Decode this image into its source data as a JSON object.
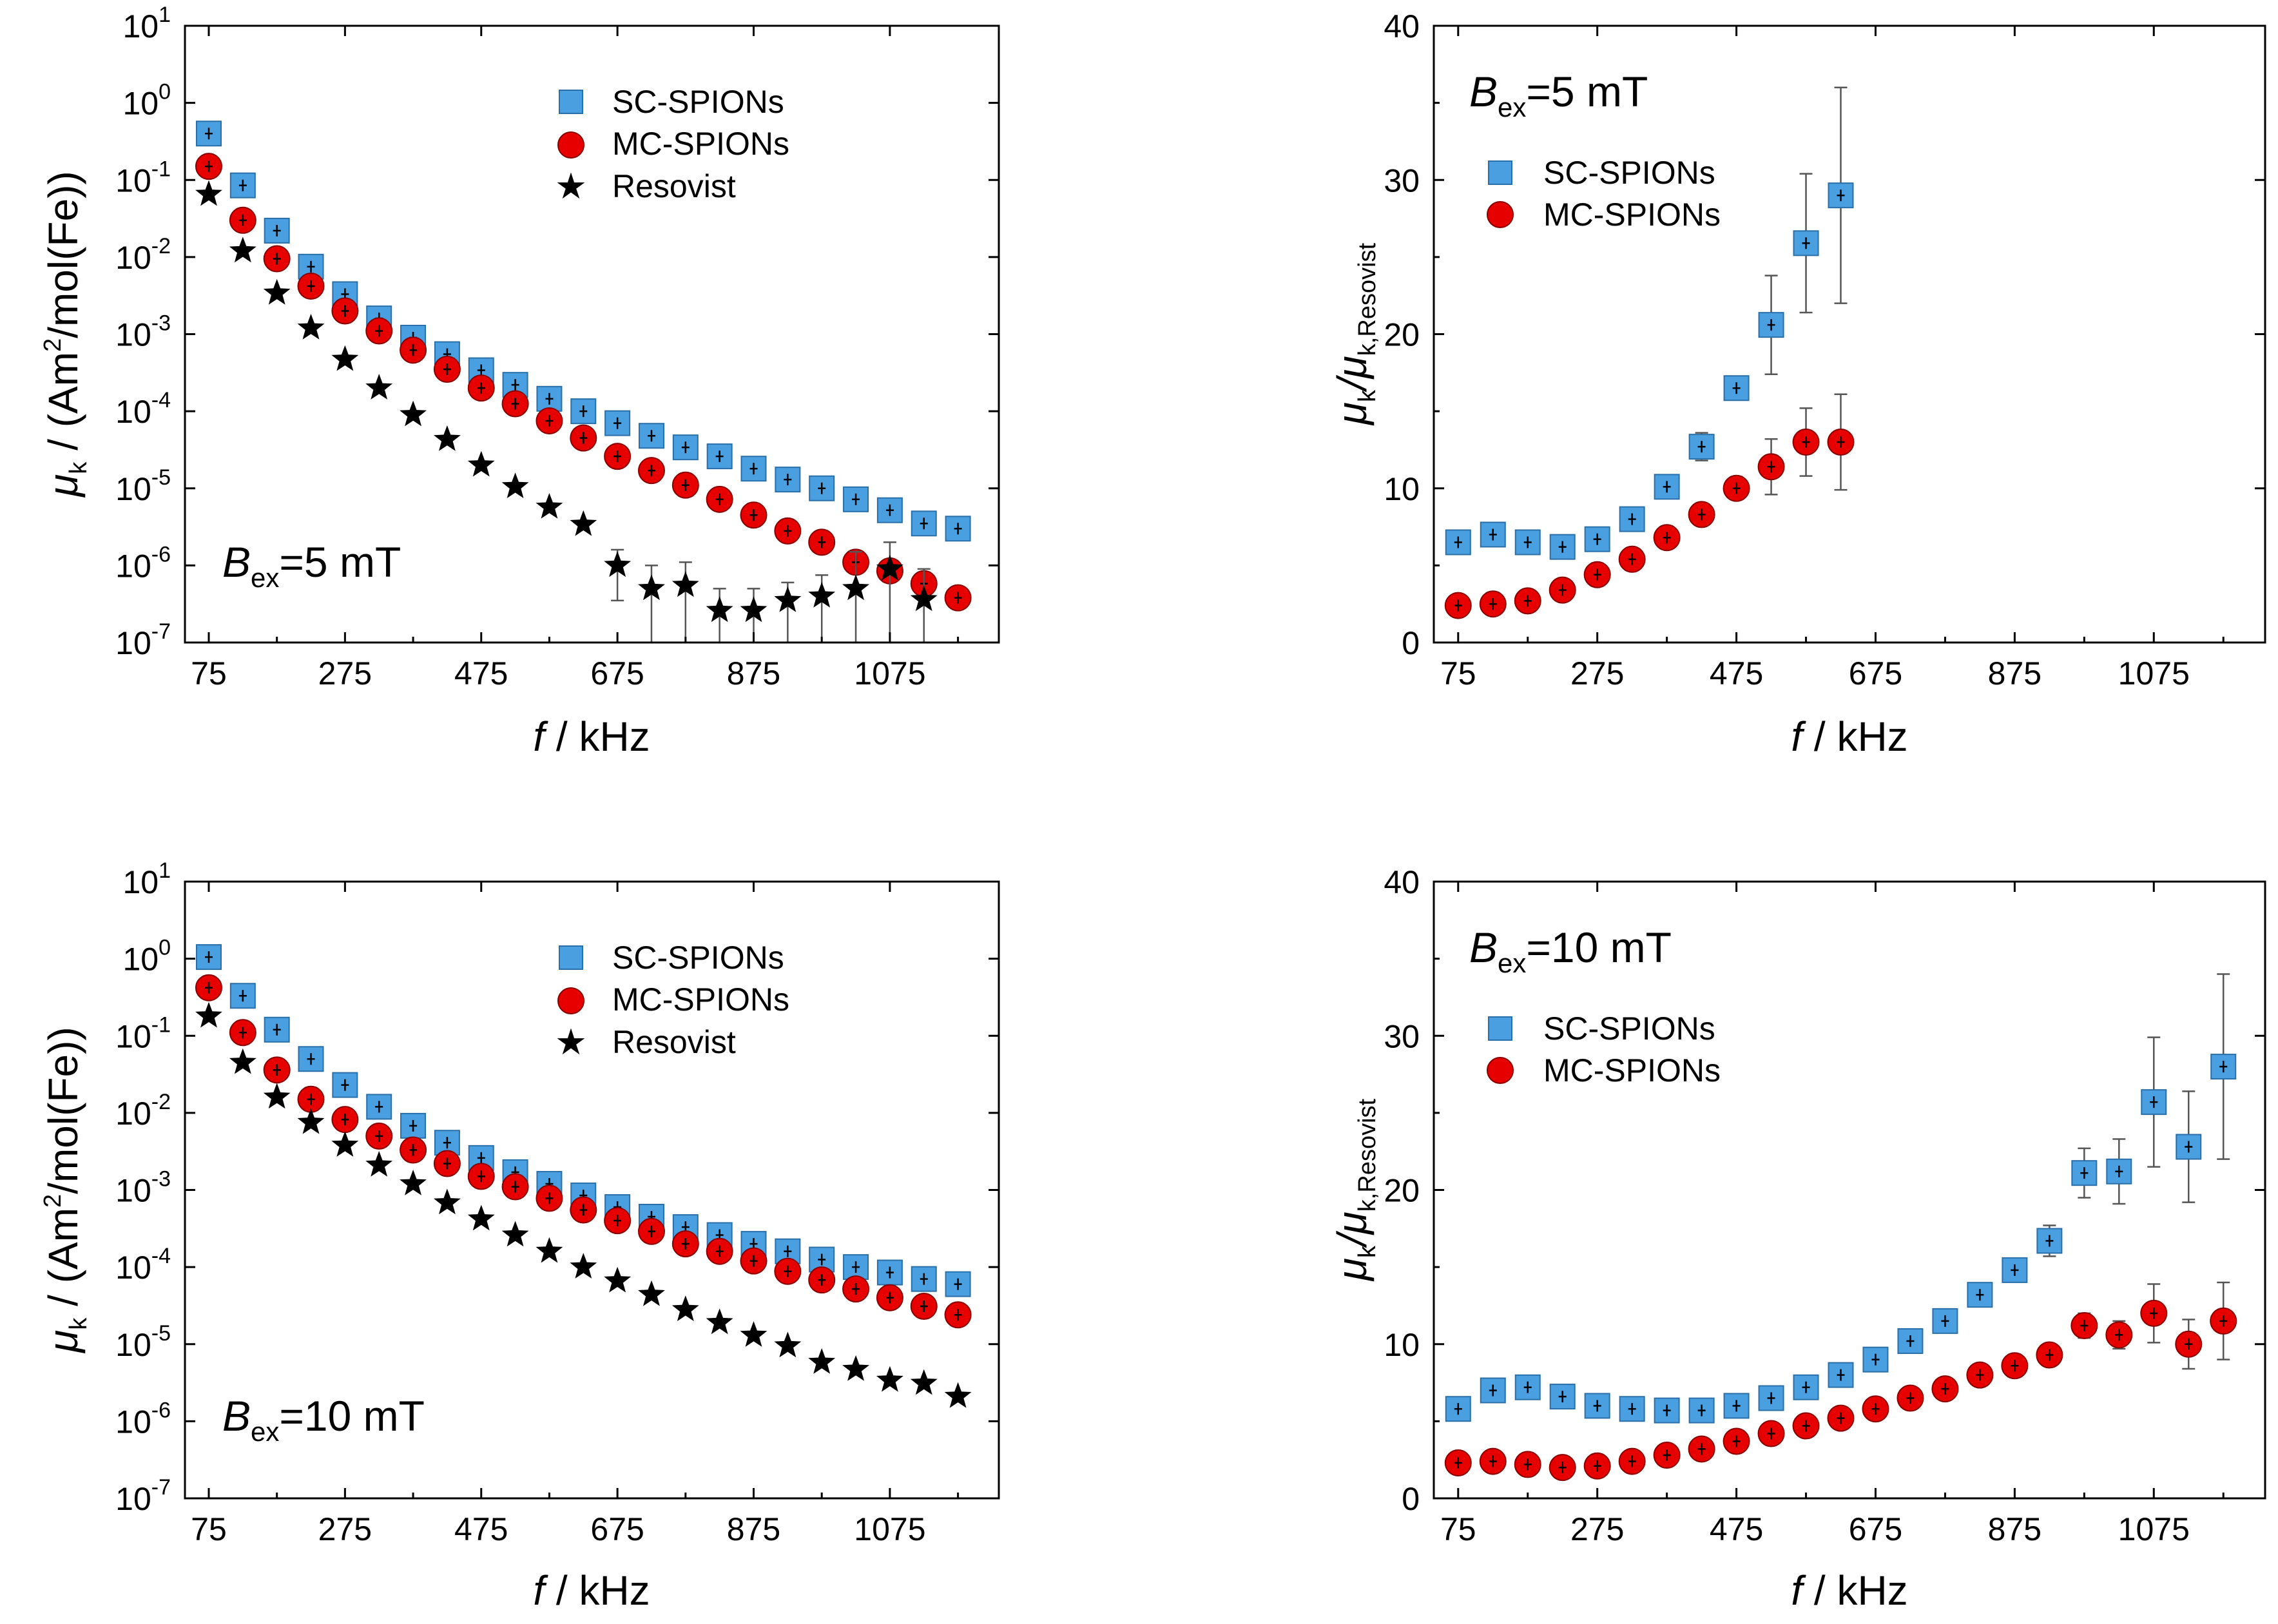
{
  "chart_data": [
    {
      "id": "p1",
      "type": "scatter",
      "yscale": "log",
      "xlim": [
        40,
        1235
      ],
      "ylim": [
        1e-07,
        10
      ],
      "xticks": [
        75,
        275,
        475,
        675,
        875,
        1075
      ],
      "xtick_labels": [
        "75",
        "275",
        "475",
        "675",
        "875",
        "1075"
      ],
      "yticks": [
        1e-07,
        1e-06,
        1e-05,
        0.0001,
        0.001,
        0.01,
        0.1,
        1,
        10
      ],
      "ytick_base": [
        "10",
        "10",
        "10",
        "10",
        "10",
        "10",
        "10",
        "10",
        "10"
      ],
      "ytick_exp": [
        "-7",
        "-6",
        "-5",
        "-4",
        "-3",
        "-2",
        "-1",
        "0",
        "1"
      ],
      "xlabel_italic": "f",
      "xlabel_rest": " / kHz",
      "ylabel_mu": "μ",
      "ylabel_sub": "k",
      "ylabel_rest": " / (Am",
      "ylabel_sup": "2",
      "ylabel_end": "/mol(Fe))",
      "annotation": {
        "B": "B",
        "sub": "ex",
        "text": "=5 mT"
      },
      "legend": [
        {
          "label": "SC-SPIONs",
          "marker": "square",
          "color": "#4a9fe0"
        },
        {
          "label": "MC-SPIONs",
          "marker": "circle",
          "color": "#e60000"
        },
        {
          "label": "Resovist",
          "marker": "star",
          "color": "#000000"
        }
      ],
      "series": [
        {
          "name": "SC-SPIONs",
          "marker": "square",
          "color": "#4a9fe0",
          "x": [
            75,
            125,
            175,
            225,
            275,
            325,
            375,
            425,
            475,
            525,
            575,
            625,
            675,
            725,
            775,
            825,
            875,
            925,
            975,
            1025,
            1075,
            1125,
            1175
          ],
          "y": [
            0.4,
            0.085,
            0.022,
            0.0075,
            0.0033,
            0.0016,
            0.0009,
            0.00055,
            0.00034,
            0.00022,
            0.000145,
            0.0001,
            7e-05,
            4.8e-05,
            3.4e-05,
            2.6e-05,
            1.8e-05,
            1.3e-05,
            1e-05,
            7.2e-06,
            5.2e-06,
            3.5e-06,
            3e-06
          ]
        },
        {
          "name": "MC-SPIONs",
          "marker": "circle",
          "color": "#e60000",
          "x": [
            75,
            125,
            175,
            225,
            275,
            325,
            375,
            425,
            475,
            525,
            575,
            625,
            675,
            725,
            775,
            825,
            875,
            925,
            975,
            1025,
            1075,
            1125,
            1175
          ],
          "y": [
            0.15,
            0.03,
            0.0095,
            0.0042,
            0.002,
            0.0011,
            0.00062,
            0.00035,
            0.0002,
            0.000125,
            7.5e-05,
            4.5e-05,
            2.6e-05,
            1.7e-05,
            1.1e-05,
            7.2e-06,
            4.5e-06,
            2.8e-06,
            2e-06,
            1.1e-06,
            8.5e-07,
            5.8e-07,
            3.8e-07
          ]
        },
        {
          "name": "Resovist",
          "marker": "star",
          "color": "#000000",
          "x": [
            75,
            125,
            175,
            225,
            275,
            325,
            375,
            425,
            475,
            525,
            575,
            625,
            675,
            725,
            775,
            825,
            875,
            925,
            975,
            1025,
            1075,
            1125
          ],
          "y": [
            0.065,
            0.012,
            0.0034,
            0.0012,
            0.00047,
            0.0002,
            9e-05,
            4.3e-05,
            2e-05,
            1.05e-05,
            5.7e-06,
            3.4e-06,
            1e-06,
            5e-07,
            5.5e-07,
            2.6e-07,
            2.6e-07,
            3.5e-07,
            4e-07,
            5e-07,
            9e-07,
            3.6e-07
          ],
          "err_lo": [
            null,
            null,
            null,
            null,
            null,
            null,
            null,
            null,
            null,
            null,
            null,
            null,
            3.5e-07,
            1e-07,
            1e-07,
            1e-07,
            1e-07,
            1e-07,
            1e-07,
            1e-07,
            1e-07,
            1e-07
          ],
          "err_hi": [
            null,
            null,
            null,
            null,
            null,
            null,
            null,
            null,
            null,
            null,
            null,
            null,
            1.6e-06,
            1e-06,
            1.1e-06,
            5e-07,
            5e-07,
            6e-07,
            7.5e-07,
            1.5e-06,
            2e-06,
            9e-07
          ]
        }
      ]
    },
    {
      "id": "p2",
      "type": "scatter",
      "yscale": "linear",
      "xlim": [
        40,
        1235
      ],
      "ylim": [
        0,
        40
      ],
      "xticks": [
        75,
        275,
        475,
        675,
        875,
        1075
      ],
      "xtick_labels": [
        "75",
        "275",
        "475",
        "675",
        "875",
        "1075"
      ],
      "yticks": [
        0,
        10,
        20,
        30,
        40
      ],
      "ytick_labels": [
        "0",
        "10",
        "20",
        "30",
        "40"
      ],
      "xlabel_italic": "f",
      "xlabel_rest": " / kHz",
      "ylabel_mu": "μ",
      "ylabel_sub": "k",
      "ylabel_mid": "/μ",
      "ylabel_sub2": "k,Resovist",
      "annotation": {
        "B": "B",
        "sub": "ex",
        "text": "=5 mT"
      },
      "legend": [
        {
          "label": "SC-SPIONs",
          "marker": "square",
          "color": "#4a9fe0"
        },
        {
          "label": "MC-SPIONs",
          "marker": "circle",
          "color": "#e60000"
        }
      ],
      "series": [
        {
          "name": "SC-SPIONs",
          "marker": "square",
          "color": "#4a9fe0",
          "x": [
            75,
            125,
            175,
            225,
            275,
            325,
            375,
            425,
            475,
            525,
            575,
            625
          ],
          "y": [
            6.5,
            7.0,
            6.5,
            6.2,
            6.7,
            8.0,
            10.1,
            12.7,
            16.5,
            20.6,
            25.9,
            29.0
          ],
          "err": [
            0.5,
            0.5,
            0.5,
            0.5,
            0.6,
            0.6,
            0.6,
            0.9,
            0.6,
            3.2,
            4.5,
            7.0
          ]
        },
        {
          "name": "MC-SPIONs",
          "marker": "circle",
          "color": "#e60000",
          "x": [
            75,
            125,
            175,
            225,
            275,
            325,
            375,
            425,
            475,
            525,
            575,
            625
          ],
          "y": [
            2.4,
            2.5,
            2.7,
            3.4,
            4.4,
            5.4,
            6.8,
            8.3,
            10.0,
            11.4,
            13.0,
            13.0
          ],
          "err": [
            0.3,
            0.3,
            0.3,
            0.4,
            0.4,
            0.4,
            0.5,
            0.5,
            0.7,
            1.8,
            2.2,
            3.1
          ]
        }
      ]
    },
    {
      "id": "p3",
      "type": "scatter",
      "yscale": "log",
      "xlim": [
        40,
        1235
      ],
      "ylim": [
        1e-07,
        10
      ],
      "xticks": [
        75,
        275,
        475,
        675,
        875,
        1075
      ],
      "xtick_labels": [
        "75",
        "275",
        "475",
        "675",
        "875",
        "1075"
      ],
      "yticks": [
        1e-07,
        1e-06,
        1e-05,
        0.0001,
        0.001,
        0.01,
        0.1,
        1,
        10
      ],
      "ytick_base": [
        "10",
        "10",
        "10",
        "10",
        "10",
        "10",
        "10",
        "10",
        "10"
      ],
      "ytick_exp": [
        "-7",
        "-6",
        "-5",
        "-4",
        "-3",
        "-2",
        "-1",
        "0",
        "1"
      ],
      "xlabel_italic": "f",
      "xlabel_rest": " / kHz",
      "ylabel_mu": "μ",
      "ylabel_sub": "k",
      "ylabel_rest": " / (Am",
      "ylabel_sup": "2",
      "ylabel_end": "/mol(Fe))",
      "annotation": {
        "B": "B",
        "sub": "ex",
        "text": "=10 mT"
      },
      "legend": [
        {
          "label": "SC-SPIONs",
          "marker": "square",
          "color": "#4a9fe0"
        },
        {
          "label": "MC-SPIONs",
          "marker": "circle",
          "color": "#e60000"
        },
        {
          "label": "Resovist",
          "marker": "star",
          "color": "#000000"
        }
      ],
      "series": [
        {
          "name": "SC-SPIONs",
          "marker": "square",
          "color": "#4a9fe0",
          "x": [
            75,
            125,
            175,
            225,
            275,
            325,
            375,
            425,
            475,
            525,
            575,
            625,
            675,
            725,
            775,
            825,
            875,
            925,
            975,
            1025,
            1075,
            1125,
            1175
          ],
          "y": [
            1.05,
            0.33,
            0.12,
            0.05,
            0.023,
            0.012,
            0.0068,
            0.0041,
            0.0026,
            0.0017,
            0.0012,
            0.00085,
            0.0006,
            0.00045,
            0.00033,
            0.00026,
            0.0002,
            0.00016,
            0.000125,
            0.0001,
            8.5e-05,
            7e-05,
            6e-05
          ]
        },
        {
          "name": "MC-SPIONs",
          "marker": "circle",
          "color": "#e60000",
          "x": [
            75,
            125,
            175,
            225,
            275,
            325,
            375,
            425,
            475,
            525,
            575,
            625,
            675,
            725,
            775,
            825,
            875,
            925,
            975,
            1025,
            1075,
            1125,
            1175
          ],
          "y": [
            0.42,
            0.11,
            0.036,
            0.015,
            0.0082,
            0.005,
            0.0033,
            0.0022,
            0.0015,
            0.0011,
            0.00078,
            0.00055,
            0.0004,
            0.00029,
            0.0002,
            0.00016,
            0.00012,
            8.8e-05,
            6.8e-05,
            5.2e-05,
            4e-05,
            3.1e-05,
            2.4e-05
          ]
        },
        {
          "name": "Resovist",
          "marker": "star",
          "color": "#000000",
          "x": [
            75,
            125,
            175,
            225,
            275,
            325,
            375,
            425,
            475,
            525,
            575,
            625,
            675,
            725,
            775,
            825,
            875,
            925,
            975,
            1025,
            1075,
            1125,
            1175
          ],
          "y": [
            0.18,
            0.045,
            0.016,
            0.0075,
            0.0038,
            0.0021,
            0.0012,
            0.00068,
            0.00042,
            0.00026,
            0.00016,
            0.0001,
            6.6e-05,
            4.4e-05,
            2.8e-05,
            1.9e-05,
            1.3e-05,
            9.5e-06,
            5.8e-06,
            4.7e-06,
            3.4e-06,
            3.1e-06,
            2.1e-06
          ]
        }
      ]
    },
    {
      "id": "p4",
      "type": "scatter",
      "yscale": "linear",
      "xlim": [
        40,
        1235
      ],
      "ylim": [
        0,
        40
      ],
      "xticks": [
        75,
        275,
        475,
        675,
        875,
        1075
      ],
      "xtick_labels": [
        "75",
        "275",
        "475",
        "675",
        "875",
        "1075"
      ],
      "yticks": [
        0,
        10,
        20,
        30,
        40
      ],
      "ytick_labels": [
        "0",
        "10",
        "20",
        "30",
        "40"
      ],
      "xlabel_italic": "f",
      "xlabel_rest": " / kHz",
      "ylabel_mu": "μ",
      "ylabel_sub": "k",
      "ylabel_mid": "/μ",
      "ylabel_sub2": "k,Resovist",
      "annotation": {
        "B": "B",
        "sub": "ex",
        "text": "=10 mT"
      },
      "legend": [
        {
          "label": "SC-SPIONs",
          "marker": "square",
          "color": "#4a9fe0"
        },
        {
          "label": "MC-SPIONs",
          "marker": "circle",
          "color": "#e60000"
        }
      ],
      "series": [
        {
          "name": "SC-SPIONs",
          "marker": "square",
          "color": "#4a9fe0",
          "x": [
            75,
            125,
            175,
            225,
            275,
            325,
            375,
            425,
            475,
            525,
            575,
            625,
            675,
            725,
            775,
            825,
            875,
            925,
            975,
            1025,
            1075,
            1125,
            1175
          ],
          "y": [
            5.8,
            7.0,
            7.2,
            6.6,
            6.0,
            5.8,
            5.7,
            5.7,
            6.0,
            6.5,
            7.2,
            8.0,
            9.0,
            10.2,
            11.5,
            13.2,
            14.8,
            16.7,
            21.1,
            21.2,
            25.7,
            22.8,
            28.0
          ],
          "err": [
            0.5,
            0.5,
            0.5,
            0.5,
            0.5,
            0.5,
            0.5,
            0.5,
            0.5,
            0.5,
            0.5,
            0.5,
            0.6,
            0.6,
            0.6,
            0.7,
            0.7,
            1.0,
            1.6,
            2.1,
            4.2,
            3.6,
            6.0
          ]
        },
        {
          "name": "MC-SPIONs",
          "marker": "circle",
          "color": "#e60000",
          "x": [
            75,
            125,
            175,
            225,
            275,
            325,
            375,
            425,
            475,
            525,
            575,
            625,
            675,
            725,
            775,
            825,
            875,
            925,
            975,
            1025,
            1075,
            1125,
            1175
          ],
          "y": [
            2.3,
            2.4,
            2.2,
            2.0,
            2.1,
            2.4,
            2.8,
            3.2,
            3.7,
            4.2,
            4.7,
            5.2,
            5.8,
            6.5,
            7.1,
            8.0,
            8.6,
            9.3,
            11.2,
            10.6,
            12.0,
            10.0,
            11.5
          ],
          "err": [
            0.3,
            0.3,
            0.3,
            0.3,
            0.3,
            0.3,
            0.3,
            0.3,
            0.3,
            0.3,
            0.3,
            0.3,
            0.4,
            0.4,
            0.4,
            0.4,
            0.4,
            0.6,
            0.8,
            0.9,
            1.9,
            1.6,
            2.5
          ]
        }
      ]
    }
  ]
}
